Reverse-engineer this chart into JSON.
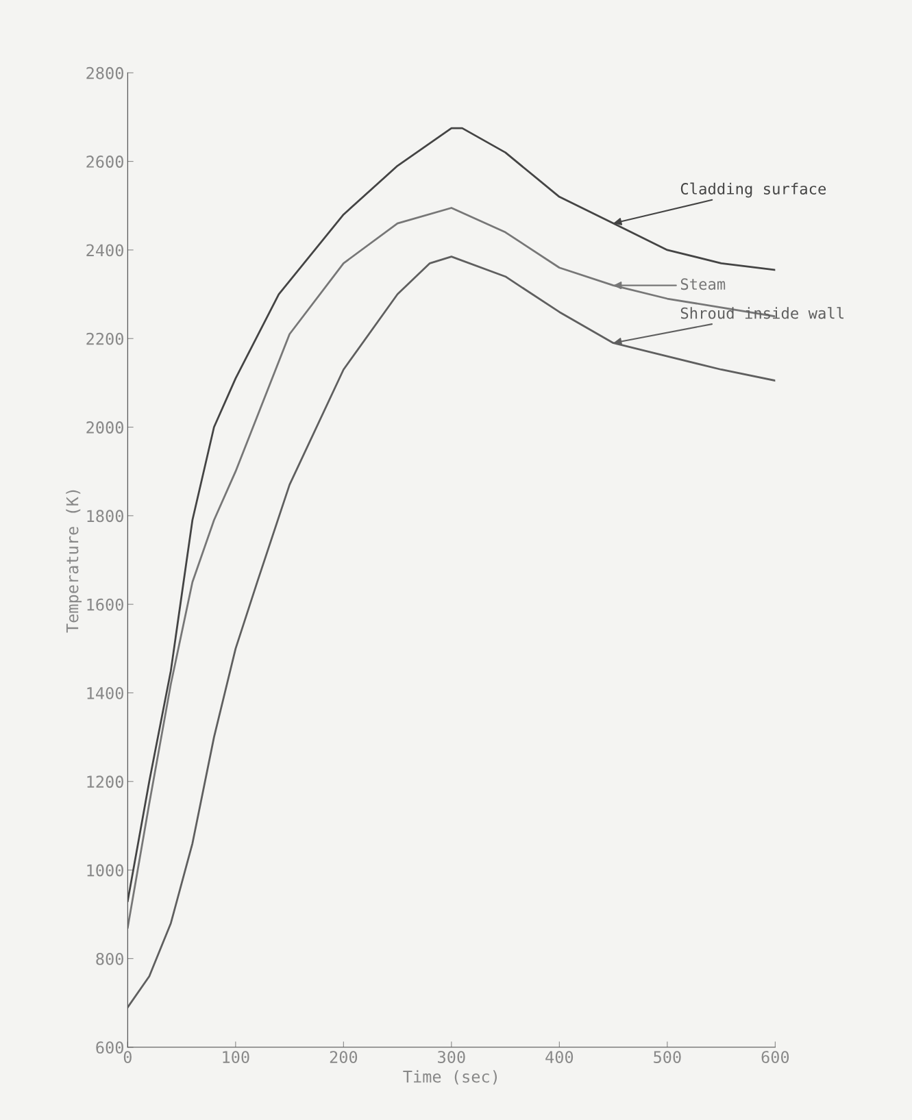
{
  "chart_data": {
    "type": "line",
    "xlabel": "Time (sec)",
    "ylabel": "Temperature (K)",
    "xlim": [
      0,
      600
    ],
    "ylim": [
      600,
      2800
    ],
    "xticks": [
      0,
      100,
      200,
      300,
      400,
      500,
      600
    ],
    "yticks": [
      600,
      800,
      1000,
      1200,
      1400,
      1600,
      1800,
      2000,
      2200,
      2400,
      2600,
      2800
    ],
    "grid": false,
    "marker": "none",
    "line_style": "solid",
    "series": [
      {
        "name": "Cladding surface",
        "color": "#444444",
        "x": [
          0,
          20,
          40,
          60,
          80,
          100,
          140,
          200,
          250,
          300,
          310,
          350,
          400,
          450,
          500,
          550,
          600
        ],
        "values": [
          930,
          1200,
          1450,
          1790,
          2000,
          2110,
          2300,
          2480,
          2590,
          2675,
          2675,
          2620,
          2520,
          2460,
          2400,
          2370,
          2355
        ]
      },
      {
        "name": "Steam",
        "color": "#777777",
        "x": [
          0,
          20,
          40,
          60,
          80,
          100,
          150,
          200,
          250,
          300,
          350,
          400,
          450,
          500,
          600
        ],
        "values": [
          870,
          1150,
          1420,
          1650,
          1790,
          1900,
          2210,
          2370,
          2460,
          2495,
          2440,
          2360,
          2320,
          2290,
          2250
        ]
      },
      {
        "name": "Shroud inside wall",
        "color": "#5f5f5f",
        "x": [
          0,
          20,
          40,
          60,
          80,
          100,
          120,
          150,
          200,
          250,
          280,
          300,
          350,
          400,
          450,
          500,
          550,
          600
        ],
        "values": [
          690,
          760,
          880,
          1060,
          1300,
          1500,
          1650,
          1870,
          2130,
          2300,
          2370,
          2385,
          2340,
          2260,
          2190,
          2160,
          2130,
          2105
        ]
      }
    ]
  }
}
